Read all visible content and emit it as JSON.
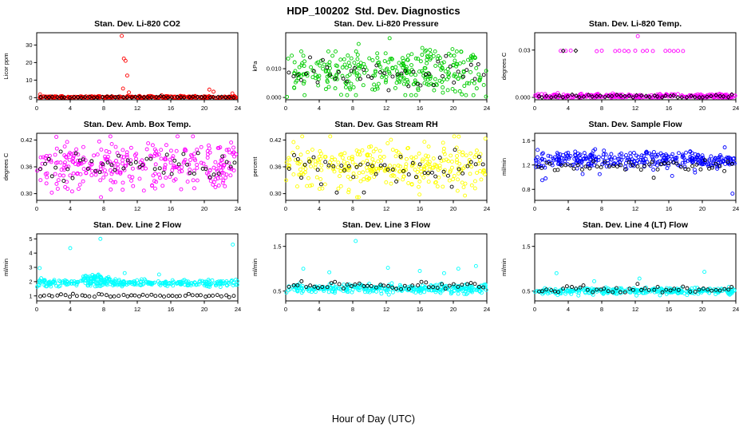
{
  "page": {
    "title": "HDP_100202  Std. Dev. Diagnostics",
    "x_axis_label": "Hour of Day (UTC)"
  },
  "chart_data": {
    "type": "scatter",
    "layout": "3x3 small multiples",
    "title": "HDP_100202  Std. Dev. Diagnostics",
    "xlabel": "Hour of Day (UTC)",
    "xlim": [
      0,
      24
    ],
    "xticks": [
      0,
      4,
      8,
      12,
      16,
      20,
      24
    ],
    "grid": false,
    "legend": "none",
    "plots": [
      {
        "title": "Stan. Dev. Li-820 CO2",
        "ylabel": "Licor ppm",
        "ylim": [
          -1.2,
          37
        ],
        "yticks": [
          0,
          10,
          20,
          30
        ],
        "ytick_labels": [
          "0",
          "10",
          "20",
          "30"
        ],
        "series": [
          {
            "name": "co2-sd",
            "color": "#ff0000",
            "marker": "circle",
            "seed": 101,
            "clusters": [
              {
                "n": 300,
                "x": [
                  0.05,
                  23.95
                ],
                "mean": 0.35,
                "sd": 0.3,
                "min": 0,
                "max": 2.2
              }
            ],
            "outliers": [
              [
                10.15,
                35.2
              ],
              [
                10.4,
                22.3
              ],
              [
                10.6,
                21.0
              ],
              [
                10.8,
                12.6
              ],
              [
                10.3,
                5.2
              ],
              [
                11.0,
                3.0
              ],
              [
                20.6,
                4.6
              ],
              [
                21.1,
                3.4
              ],
              [
                23.35,
                2.4
              ],
              [
                0.4,
                1.9
              ]
            ]
          },
          {
            "name": "hourly-mean",
            "color": "#000000",
            "marker": "diamond",
            "seed": 102,
            "clusters": [
              {
                "n": 48,
                "x": [
                  0.2,
                  23.8
                ],
                "mean": 0.3,
                "sd": 0.22,
                "min": 0,
                "max": 1.2,
                "even": true
              }
            ],
            "outliers": []
          }
        ]
      },
      {
        "title": "Stan. Dev. Li-820 Pressure",
        "ylabel": "kPa",
        "ylim": [
          -0.0008,
          0.0225
        ],
        "yticks": [
          0,
          0.01
        ],
        "ytick_labels": [
          "0.000",
          "0.010"
        ],
        "series": [
          {
            "name": "pressure-sd",
            "color": "#00cd00",
            "marker": "circle",
            "seed": 201,
            "clusters": [
              {
                "n": 290,
                "x": [
                  0.05,
                  23.95
                ],
                "mean": 0.008,
                "sd": 0.0038,
                "min": 0.0008,
                "max": 0.016
              },
              {
                "n": 30,
                "x": [
                  8,
                  24
                ],
                "mean": 0.013,
                "sd": 0.002,
                "min": 0.008,
                "max": 0.017
              }
            ],
            "outliers": [
              [
                12.4,
                0.0206
              ],
              [
                8.7,
                0.0186
              ],
              [
                16.3,
                0.0172
              ],
              [
                19.9,
                0.0168
              ],
              [
                0.15,
                0.0002
              ],
              [
                23.9,
                0.0003
              ]
            ]
          },
          {
            "name": "hourly-mean",
            "color": "#000000",
            "marker": "circle",
            "seed": 202,
            "clusters": [
              {
                "n": 48,
                "x": [
                  0.2,
                  23.8
                ],
                "mean": 0.0085,
                "sd": 0.0028,
                "min": 0.002,
                "max": 0.0145,
                "even": true
              }
            ],
            "outliers": []
          }
        ]
      },
      {
        "title": "Stan. Dev. Li-820 Temp.",
        "ylabel": "degrees C",
        "ylim": [
          -0.0015,
          0.041
        ],
        "yticks": [
          0,
          0.03
        ],
        "ytick_labels": [
          "0.000",
          "0.03"
        ],
        "series": [
          {
            "name": "temp-sd",
            "color": "#ff00ff",
            "marker": "circle",
            "seed": 301,
            "clusters": [
              {
                "n": 300,
                "x": [
                  0.05,
                  23.95
                ],
                "mean": 0.0008,
                "sd": 0.0007,
                "min": 0,
                "max": 0.003
              }
            ],
            "outliers": [
              [
                3.1,
                0.0295
              ],
              [
                3.7,
                0.0295
              ],
              [
                4.3,
                0.0297
              ],
              [
                7.4,
                0.0293
              ],
              [
                8.0,
                0.0296
              ],
              [
                9.6,
                0.0294
              ],
              [
                10.1,
                0.0296
              ],
              [
                10.7,
                0.0295
              ],
              [
                11.2,
                0.0293
              ],
              [
                12.0,
                0.0296
              ],
              [
                12.9,
                0.0294
              ],
              [
                13.4,
                0.0296
              ],
              [
                14.1,
                0.0294
              ],
              [
                15.6,
                0.0295
              ],
              [
                16.1,
                0.0296
              ],
              [
                16.6,
                0.0294
              ],
              [
                17.1,
                0.0295
              ],
              [
                17.7,
                0.0294
              ],
              [
                12.3,
                0.0388
              ]
            ]
          },
          {
            "name": "hourly-mean",
            "color": "#000000",
            "marker": "diamond",
            "seed": 302,
            "clusters": [
              {
                "n": 48,
                "x": [
                  0.2,
                  23.8
                ],
                "mean": 0.0007,
                "sd": 0.0006,
                "min": 0,
                "max": 0.0025,
                "even": true
              }
            ],
            "outliers": [
              [
                3.4,
                0.0295
              ],
              [
                4.9,
                0.0296
              ]
            ]
          }
        ]
      },
      {
        "title": "Stan. Dev. Amb. Box Temp.",
        "ylabel": "degrees C",
        "ylim": [
          0.285,
          0.435
        ],
        "yticks": [
          0.3,
          0.36,
          0.42
        ],
        "ytick_labels": [
          "0.30",
          "0.36",
          "0.42"
        ],
        "series": [
          {
            "name": "box-temp-sd",
            "color": "#ff00ff",
            "marker": "circle",
            "seed": 401,
            "clusters": [
              {
                "n": 310,
                "x": [
                  0.05,
                  23.95
                ],
                "mean": 0.362,
                "sd": 0.027,
                "min": 0.292,
                "max": 0.428
              }
            ],
            "outliers": []
          },
          {
            "name": "hourly-mean",
            "color": "#000000",
            "marker": "circle",
            "seed": 402,
            "clusters": [
              {
                "n": 50,
                "x": [
                  0.2,
                  23.8
                ],
                "mean": 0.363,
                "sd": 0.02,
                "min": 0.3,
                "max": 0.42,
                "even": true
              }
            ],
            "outliers": []
          }
        ]
      },
      {
        "title": "Stan. Dev. Gas Stream RH",
        "ylabel": "percent",
        "ylim": [
          0.285,
          0.435
        ],
        "yticks": [
          0.3,
          0.36,
          0.42
        ],
        "ytick_labels": [
          "0.30",
          "0.36",
          "0.42"
        ],
        "series": [
          {
            "name": "rh-sd",
            "color": "#ffff00",
            "marker": "circle",
            "seed": 501,
            "clusters": [
              {
                "n": 310,
                "x": [
                  0.05,
                  23.95
                ],
                "mean": 0.36,
                "sd": 0.027,
                "min": 0.292,
                "max": 0.428
              }
            ],
            "outliers": []
          },
          {
            "name": "hourly-mean",
            "color": "#000000",
            "marker": "circle",
            "seed": 502,
            "clusters": [
              {
                "n": 50,
                "x": [
                  0.2,
                  23.8
                ],
                "mean": 0.36,
                "sd": 0.022,
                "min": 0.3,
                "max": 0.42,
                "even": true
              }
            ],
            "outliers": []
          }
        ]
      },
      {
        "title": "Stan. Dev. Sample Flow",
        "ylabel": "ml/min",
        "ylim": [
          0.62,
          1.72
        ],
        "yticks": [
          0.8,
          1.2,
          1.6
        ],
        "ytick_labels": [
          "0.8",
          "1.2",
          "1.6"
        ],
        "series": [
          {
            "name": "sample-flow-sd",
            "color": "#0000ff",
            "marker": "circle",
            "seed": 601,
            "clusters": [
              {
                "n": 330,
                "x": [
                  0.05,
                  23.95
                ],
                "mean": 1.28,
                "sd": 0.07,
                "min": 1.05,
                "max": 1.52
              }
            ],
            "outliers": [
              [
                23.6,
                0.73
              ],
              [
                0.9,
                0.95
              ],
              [
                1.3,
                0.98
              ],
              [
                16.4,
                1.02
              ]
            ]
          },
          {
            "name": "hourly-mean",
            "color": "#000000",
            "marker": "circle",
            "seed": 602,
            "clusters": [
              {
                "n": 50,
                "x": [
                  0.2,
                  23.8
                ],
                "mean": 1.18,
                "sd": 0.05,
                "min": 1.0,
                "max": 1.34,
                "even": true
              }
            ],
            "outliers": [
              [
                14.2,
                0.99
              ]
            ]
          }
        ]
      },
      {
        "title": "Stan. Dev. Line 2 Flow",
        "ylabel": "ml/min",
        "ylim": [
          0.65,
          5.35
        ],
        "yticks": [
          1,
          2,
          3,
          4,
          5
        ],
        "ytick_labels": [
          "1",
          "2",
          "3",
          "4",
          "5"
        ],
        "series": [
          {
            "name": "line2-flow-sd",
            "color": "#00ffff",
            "marker": "circle",
            "seed": 701,
            "clusters": [
              {
                "n": 300,
                "x": [
                  0.05,
                  23.95
                ],
                "mean": 1.9,
                "sd": 0.12,
                "min": 1.55,
                "max": 2.3
              },
              {
                "n": 45,
                "x": [
                  5.5,
                  9
                ],
                "mean": 2.25,
                "sd": 0.12,
                "min": 1.9,
                "max": 2.6
              }
            ],
            "outliers": [
              [
                0.35,
                2.95
              ],
              [
                4.0,
                4.35
              ],
              [
                7.6,
                5.0
              ],
              [
                10.5,
                2.6
              ],
              [
                14.6,
                2.5
              ],
              [
                23.4,
                4.6
              ]
            ]
          },
          {
            "name": "hourly-mean",
            "color": "#000000",
            "marker": "circle",
            "seed": 702,
            "clusters": [
              {
                "n": 48,
                "x": [
                  0.2,
                  23.8
                ],
                "mean": 1.02,
                "sd": 0.05,
                "min": 0.9,
                "max": 1.2,
                "even": true
              }
            ],
            "outliers": []
          }
        ]
      },
      {
        "title": "Stan. Dev. Line 3 Flow",
        "ylabel": "ml/min",
        "ylim": [
          0.28,
          1.78
        ],
        "yticks": [
          0.5,
          1.5
        ],
        "ytick_labels": [
          "0.5",
          "1.5"
        ],
        "series": [
          {
            "name": "line3-flow-sd",
            "color": "#00ffff",
            "marker": "circle",
            "seed": 801,
            "clusters": [
              {
                "n": 320,
                "x": [
                  0.05,
                  23.95
                ],
                "mean": 0.56,
                "sd": 0.05,
                "min": 0.42,
                "max": 0.74
              }
            ],
            "outliers": [
              [
                2.1,
                1.0
              ],
              [
                5.2,
                0.92
              ],
              [
                8.35,
                1.62
              ],
              [
                12.2,
                1.02
              ],
              [
                16.0,
                0.95
              ],
              [
                18.9,
                0.9
              ],
              [
                20.6,
                1.0
              ],
              [
                22.7,
                1.06
              ]
            ]
          },
          {
            "name": "hourly-mean",
            "color": "#000000",
            "marker": "circle",
            "seed": 802,
            "clusters": [
              {
                "n": 48,
                "x": [
                  0.2,
                  23.8
                ],
                "mean": 0.62,
                "sd": 0.05,
                "min": 0.5,
                "max": 0.8,
                "even": true
              }
            ],
            "outliers": []
          }
        ]
      },
      {
        "title": "Stan. Dev. Line 4 (LT) Flow",
        "ylabel": "ml/min",
        "ylim": [
          0.28,
          1.78
        ],
        "yticks": [
          0.5,
          1.5
        ],
        "ytick_labels": [
          "0.5",
          "1.5"
        ],
        "series": [
          {
            "name": "line4-flow-sd",
            "color": "#00ffff",
            "marker": "circle",
            "seed": 901,
            "clusters": [
              {
                "n": 320,
                "x": [
                  0.05,
                  23.95
                ],
                "mean": 0.5,
                "sd": 0.035,
                "min": 0.4,
                "max": 0.62
              }
            ],
            "outliers": [
              [
                2.6,
                0.9
              ],
              [
                7.1,
                0.72
              ],
              [
                12.5,
                0.78
              ],
              [
                20.25,
                0.93
              ]
            ]
          },
          {
            "name": "hourly-mean",
            "color": "#000000",
            "marker": "circle",
            "seed": 902,
            "clusters": [
              {
                "n": 48,
                "x": [
                  0.2,
                  23.8
                ],
                "mean": 0.53,
                "sd": 0.04,
                "min": 0.44,
                "max": 0.66,
                "even": true
              }
            ],
            "outliers": []
          }
        ]
      }
    ]
  }
}
